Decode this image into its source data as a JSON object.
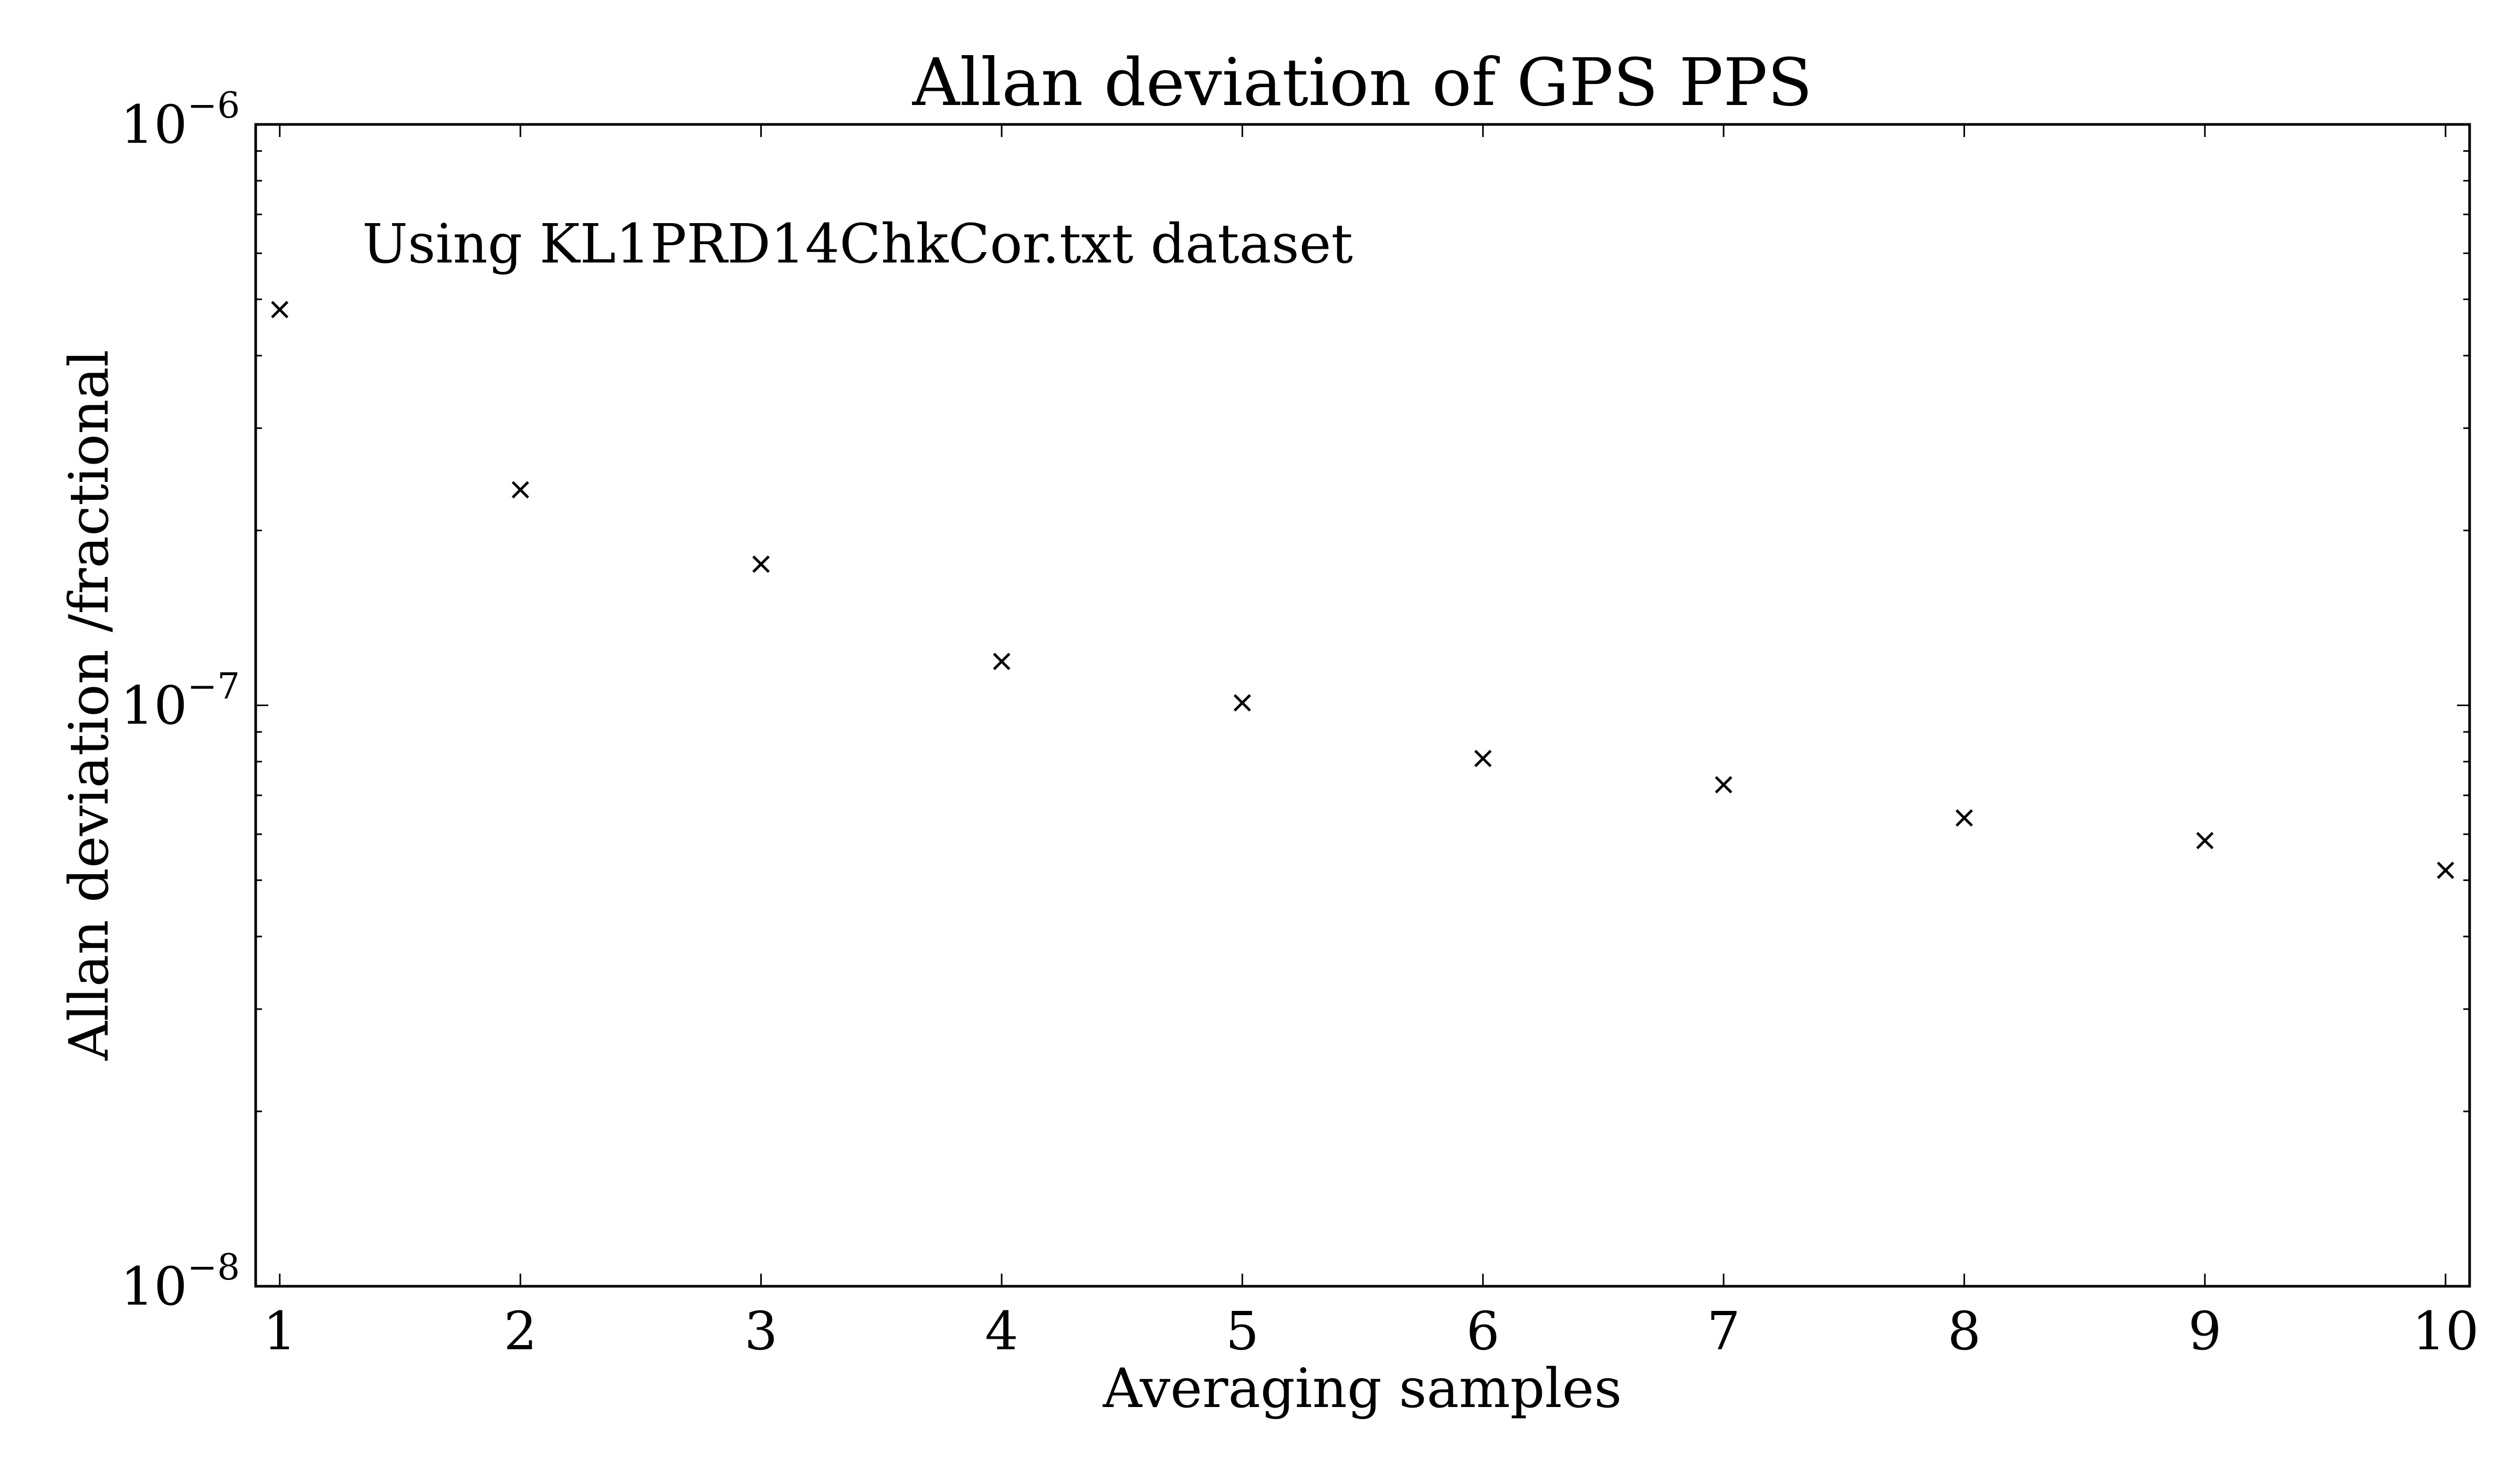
{
  "chart_data": {
    "type": "scatter",
    "title": "Allan deviation of GPS PPS",
    "xlabel": "Averaging samples",
    "ylabel": "Allan deviation /fractional",
    "annotation": "Using KL1PRD14ChkCor.txt dataset",
    "yscale": "log",
    "xlim": [
      0.9,
      10.1
    ],
    "ylim": [
      1e-08,
      1e-06
    ],
    "x_ticks": [
      1,
      2,
      3,
      4,
      5,
      6,
      7,
      8,
      9,
      10
    ],
    "y_ticks": [
      {
        "value": 1e-08,
        "base": "10",
        "exp": "−8"
      },
      {
        "value": 1e-07,
        "base": "10",
        "exp": "−7"
      },
      {
        "value": 1e-06,
        "base": "10",
        "exp": "−6"
      }
    ],
    "marker": "x",
    "marker_color": "#000000",
    "grid": false,
    "series": [
      {
        "x": [
          1,
          2,
          3,
          4,
          5,
          6,
          7,
          8,
          9,
          10
        ],
        "values": [
          4.8e-07,
          2.35e-07,
          1.75e-07,
          1.19e-07,
          1.01e-07,
          8.1e-08,
          7.3e-08,
          6.4e-08,
          5.85e-08,
          5.2e-08
        ]
      }
    ]
  }
}
